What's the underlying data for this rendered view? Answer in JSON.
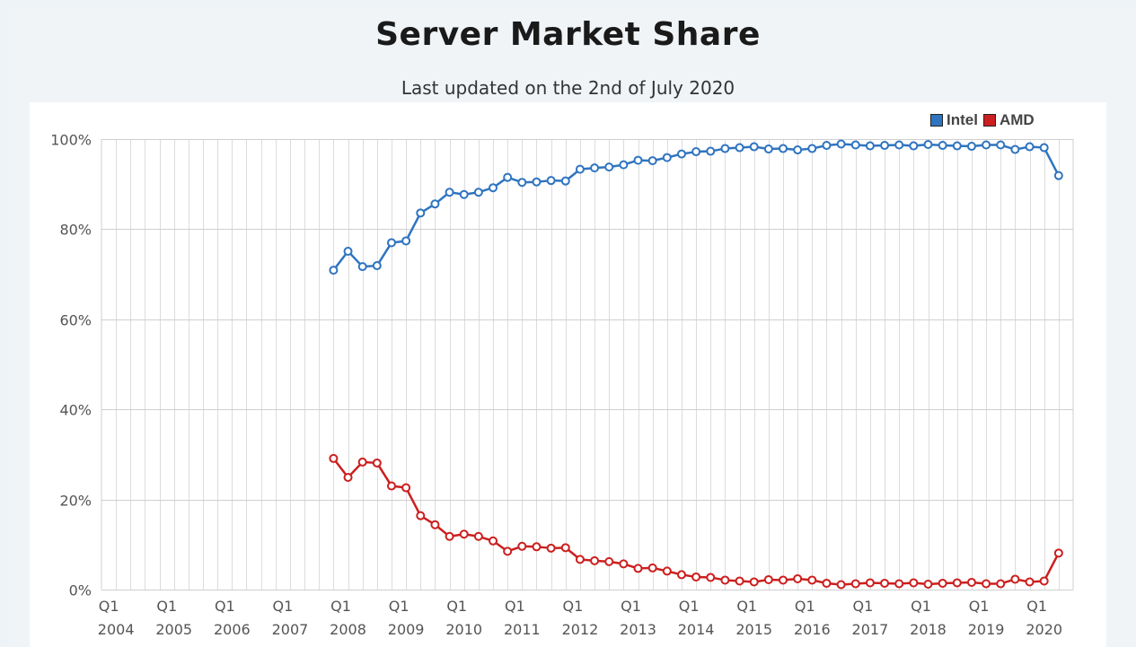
{
  "header": {
    "title": "Server Market Share",
    "subtitle": "Last updated on the 2nd of July 2020"
  },
  "chart_data": {
    "type": "line",
    "title": "Server Market Share",
    "subtitle": "Last updated on the 2nd of July 2020",
    "xlabel": "",
    "ylabel": "",
    "ylim": [
      0,
      100
    ],
    "y_ticks": [
      "0%",
      "20%",
      "40%",
      "60%",
      "80%",
      "100%"
    ],
    "x_tick_labels": [
      {
        "quarter": "Q1",
        "year": "2004"
      },
      {
        "quarter": "Q1",
        "year": "2005"
      },
      {
        "quarter": "Q1",
        "year": "2006"
      },
      {
        "quarter": "Q1",
        "year": "2007"
      },
      {
        "quarter": "Q1",
        "year": "2008"
      },
      {
        "quarter": "Q1",
        "year": "2009"
      },
      {
        "quarter": "Q1",
        "year": "2010"
      },
      {
        "quarter": "Q1",
        "year": "2011"
      },
      {
        "quarter": "Q1",
        "year": "2012"
      },
      {
        "quarter": "Q1",
        "year": "2013"
      },
      {
        "quarter": "Q1",
        "year": "2014"
      },
      {
        "quarter": "Q1",
        "year": "2015"
      },
      {
        "quarter": "Q1",
        "year": "2016"
      },
      {
        "quarter": "Q1",
        "year": "2017"
      },
      {
        "quarter": "Q1",
        "year": "2018"
      },
      {
        "quarter": "Q1",
        "year": "2019"
      },
      {
        "quarter": "Q1",
        "year": "2020"
      }
    ],
    "x": [
      "2007 Q4",
      "2008 Q1",
      "2008 Q2",
      "2008 Q3",
      "2008 Q4",
      "2009 Q1",
      "2009 Q2",
      "2009 Q3",
      "2009 Q4",
      "2010 Q1",
      "2010 Q2",
      "2010 Q3",
      "2010 Q4",
      "2011 Q1",
      "2011 Q2",
      "2011 Q3",
      "2011 Q4",
      "2012 Q1",
      "2012 Q2",
      "2012 Q3",
      "2012 Q4",
      "2013 Q1",
      "2013 Q2",
      "2013 Q3",
      "2013 Q4",
      "2014 Q1",
      "2014 Q2",
      "2014 Q3",
      "2014 Q4",
      "2015 Q1",
      "2015 Q2",
      "2015 Q3",
      "2015 Q4",
      "2016 Q1",
      "2016 Q2",
      "2016 Q3",
      "2016 Q4",
      "2017 Q1",
      "2017 Q2",
      "2017 Q3",
      "2017 Q4",
      "2018 Q1",
      "2018 Q2",
      "2018 Q3",
      "2018 Q4",
      "2019 Q1",
      "2019 Q2",
      "2019 Q3",
      "2019 Q4",
      "2020 Q1",
      "2020 Q2"
    ],
    "series": [
      {
        "name": "Intel",
        "color": "#2f74c0",
        "values": [
          70.9,
          75.1,
          71.7,
          71.9,
          77.0,
          77.4,
          83.6,
          85.6,
          88.2,
          87.7,
          88.2,
          89.2,
          91.5,
          90.4,
          90.5,
          90.8,
          90.7,
          93.3,
          93.6,
          93.8,
          94.3,
          95.3,
          95.2,
          95.9,
          96.7,
          97.2,
          97.3,
          97.9,
          98.1,
          98.3,
          97.8,
          97.9,
          97.6,
          97.9,
          98.6,
          98.9,
          98.7,
          98.5,
          98.6,
          98.7,
          98.5,
          98.8,
          98.6,
          98.5,
          98.4,
          98.7,
          98.7,
          97.7,
          98.3,
          98.1,
          91.9
        ]
      },
      {
        "name": "AMD",
        "color": "#cc1f1f",
        "values": [
          29.1,
          24.9,
          28.3,
          28.1,
          23.0,
          22.6,
          16.4,
          14.4,
          11.8,
          12.3,
          11.8,
          10.8,
          8.5,
          9.6,
          9.5,
          9.2,
          9.3,
          6.7,
          6.4,
          6.2,
          5.7,
          4.7,
          4.8,
          4.1,
          3.3,
          2.8,
          2.7,
          2.1,
          1.9,
          1.7,
          2.2,
          2.1,
          2.4,
          2.1,
          1.4,
          1.1,
          1.3,
          1.5,
          1.4,
          1.3,
          1.5,
          1.2,
          1.4,
          1.5,
          1.6,
          1.3,
          1.3,
          2.3,
          1.7,
          1.9,
          8.1
        ]
      }
    ],
    "legend": {
      "position": "top-right",
      "entries": [
        "Intel",
        "AMD"
      ]
    },
    "grid": {
      "horizontal": true,
      "vertical": true
    }
  }
}
